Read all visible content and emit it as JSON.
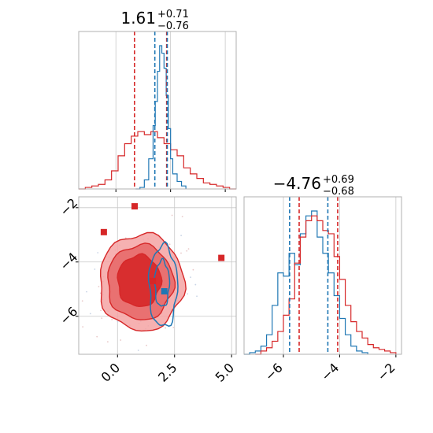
{
  "colors": {
    "red": "#d62728",
    "blue": "#1f77b4",
    "pink": "#f4a3a3",
    "grid": "#c8c8c8",
    "frame": "#b0b0b0"
  },
  "chart_data": [
    {
      "type": "histogram",
      "panel": "top-left marginal (parameter 1)",
      "title_value": "1.61",
      "title_plus": "+0.71",
      "title_minus": "−0.76",
      "xlim": [
        -1.7,
        5.5
      ],
      "grid": true,
      "vlines": {
        "red": [
          0.85,
          2.32
        ],
        "blue": [
          1.78,
          2.35
        ]
      },
      "series": [
        {
          "color": "red",
          "x": [
            -1.7,
            -1.4,
            -1.1,
            -0.8,
            -0.5,
            -0.2,
            0.1,
            0.4,
            0.7,
            1.0,
            1.3,
            1.6,
            1.9,
            2.2,
            2.5,
            2.8,
            3.1,
            3.4,
            3.7,
            4.0,
            4.3,
            4.6,
            4.9,
            5.2,
            5.5
          ],
          "values": [
            0,
            0.01,
            0.02,
            0.03,
            0.06,
            0.12,
            0.22,
            0.3,
            0.35,
            0.38,
            0.36,
            0.38,
            0.34,
            0.3,
            0.26,
            0.22,
            0.14,
            0.1,
            0.07,
            0.04,
            0.03,
            0.02,
            0.01,
            0,
            0
          ]
        },
        {
          "color": "blue",
          "x": [
            0.9,
            1.1,
            1.3,
            1.5,
            1.7,
            1.8,
            1.9,
            2.0,
            2.1,
            2.2,
            2.3,
            2.4,
            2.5,
            2.6,
            2.8,
            3.0,
            3.2
          ],
          "values": [
            0,
            0.01,
            0.06,
            0.2,
            0.42,
            0.58,
            0.78,
            0.95,
            0.9,
            0.8,
            0.62,
            0.4,
            0.2,
            0.1,
            0.05,
            0.02,
            0
          ]
        }
      ]
    },
    {
      "type": "histogram",
      "panel": "bottom-right marginal (parameter 2)",
      "title_value": "−4.76",
      "title_plus": "+0.69",
      "title_minus": "−0.68",
      "xlim": [
        -7.4,
        -1.8
      ],
      "xticks": [
        "−6",
        "−4",
        "−2"
      ],
      "grid": true,
      "vlines": {
        "red": [
          -5.44,
          -4.07
        ],
        "blue": [
          -5.78,
          -4.42
        ]
      },
      "series": [
        {
          "color": "blue",
          "x": [
            -7.4,
            -7.2,
            -7.0,
            -6.8,
            -6.6,
            -6.4,
            -6.2,
            -6.0,
            -5.8,
            -5.6,
            -5.4,
            -5.2,
            -5.0,
            -4.8,
            -4.6,
            -4.4,
            -4.2,
            -4.0,
            -3.8,
            -3.6,
            -3.4,
            -3.2,
            -3.0
          ],
          "values": [
            0,
            0.01,
            0.02,
            0.05,
            0.12,
            0.3,
            0.5,
            0.48,
            0.62,
            0.55,
            0.74,
            0.85,
            0.88,
            0.72,
            0.62,
            0.5,
            0.36,
            0.22,
            0.12,
            0.05,
            0.02,
            0.01,
            0
          ]
        },
        {
          "color": "red",
          "x": [
            -7.0,
            -6.8,
            -6.6,
            -6.4,
            -6.2,
            -6.0,
            -5.8,
            -5.6,
            -5.4,
            -5.2,
            -5.0,
            -4.8,
            -4.6,
            -4.4,
            -4.2,
            -4.0,
            -3.8,
            -3.6,
            -3.4,
            -3.2,
            -3.0,
            -2.8,
            -2.6,
            -2.4,
            -2.2,
            -2.0
          ],
          "values": [
            0,
            0.02,
            0.04,
            0.08,
            0.14,
            0.24,
            0.34,
            0.56,
            0.72,
            0.82,
            0.85,
            0.82,
            0.76,
            0.74,
            0.6,
            0.46,
            0.3,
            0.2,
            0.14,
            0.1,
            0.06,
            0.04,
            0.03,
            0.02,
            0.01,
            0
          ]
        }
      ]
    },
    {
      "type": "contour",
      "panel": "bottom-left joint (parameter 1 vs parameter 2)",
      "xlim": [
        -1.7,
        5.2
      ],
      "ylim": [
        -7.4,
        -1.6
      ],
      "xticks": [
        "0.0",
        "2.5",
        "5.0"
      ],
      "yticks": [
        "−2",
        "−4",
        "−6"
      ],
      "grid": true,
      "contours": [
        {
          "color": "red",
          "level": "outer",
          "cx": 1.05,
          "cy": -4.75,
          "rx": 1.85,
          "ry": 1.78
        },
        {
          "color": "red",
          "level": "middle",
          "cx": 1.0,
          "cy": -4.75,
          "rx": 1.45,
          "ry": 1.38
        },
        {
          "color": "red",
          "level": "inner",
          "cx": 0.95,
          "cy": -4.7,
          "rx": 0.95,
          "ry": 0.95
        },
        {
          "color": "blue",
          "level": "outer",
          "cx": 2.0,
          "cy": -4.9,
          "rx": 0.62,
          "ry": 1.5
        },
        {
          "color": "blue",
          "level": "inner",
          "cx": 1.95,
          "cy": -4.8,
          "rx": 0.32,
          "ry": 0.85
        }
      ],
      "markers": [
        {
          "color": "red",
          "x": 0.75,
          "y": -1.95
        },
        {
          "color": "red",
          "x": -0.6,
          "y": -2.9
        },
        {
          "color": "red",
          "x": 4.55,
          "y": -3.85
        },
        {
          "color": "red",
          "x": 1.55,
          "y": -4.7
        },
        {
          "color": "blue",
          "x": 2.05,
          "y": -5.08
        }
      ]
    }
  ]
}
